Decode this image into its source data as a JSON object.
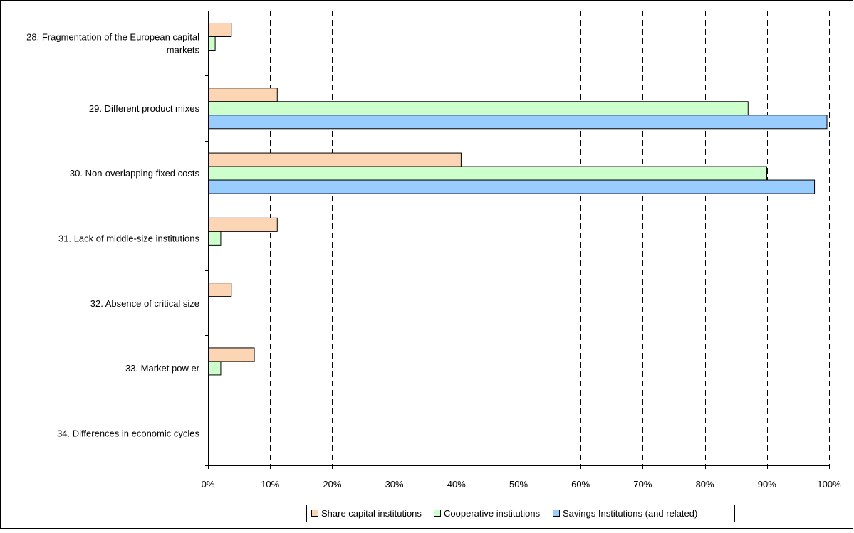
{
  "chart_data": {
    "type": "bar",
    "orientation": "horizontal",
    "categories": [
      "28. Fragmentation of the European capital markets",
      "29. Different product mixes",
      "30. Non-overlapping fixed costs",
      "31. Lack of middle-size institutions",
      "32. Absence of critical size",
      "33. Market power",
      "34. Differences in economic cycles"
    ],
    "category_lines": [
      [
        "28. Fragmentation of the European capital",
        "markets"
      ],
      [
        "29. Different product mixes"
      ],
      [
        "30. Non-overlapping fixed costs"
      ],
      [
        "31. Lack of middle-size institutions"
      ],
      [
        "32. Absence of critical size"
      ],
      [
        "33. Market pow er"
      ],
      [
        "34. Differences in economic cycles"
      ]
    ],
    "series": [
      {
        "name": "Share capital institutions",
        "color": "#fcd5b4",
        "values": [
          3.7,
          11.1,
          40.7,
          11.1,
          3.7,
          7.4,
          0
        ]
      },
      {
        "name": "Cooperative institutions",
        "color": "#ccffcc",
        "values": [
          1.1,
          86.9,
          89.9,
          2.0,
          0,
          2.0,
          0
        ]
      },
      {
        "name": "Savings Institutions (and related)",
        "color": "#99ccff",
        "values": [
          0,
          99.6,
          97.6,
          0,
          0,
          0,
          0
        ]
      }
    ],
    "x_ticks": [
      "0%",
      "10%",
      "20%",
      "30%",
      "40%",
      "50%",
      "60%",
      "70%",
      "80%",
      "90%",
      "100%"
    ],
    "xlim": [
      0,
      100
    ],
    "grid": "vertical dashed",
    "legend_position": "bottom",
    "title": "",
    "xlabel": "",
    "ylabel": ""
  }
}
